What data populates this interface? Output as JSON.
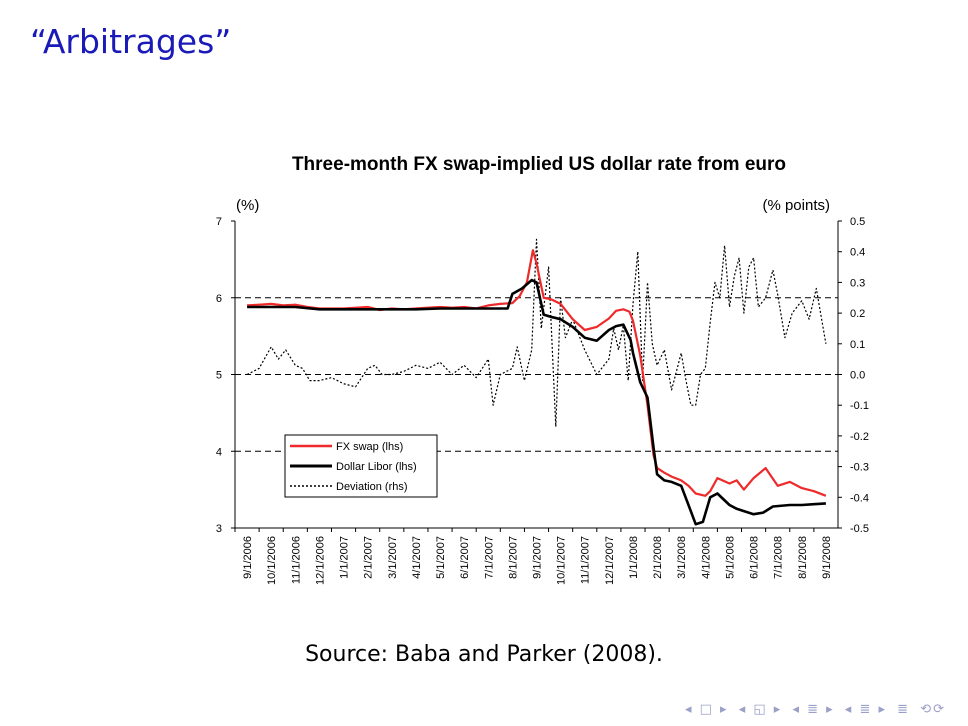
{
  "slide": {
    "title": "“Arbitrages”",
    "source": "Source: Baba and Parker (2008)."
  },
  "nav": {
    "icons": [
      "nav-first-icon",
      "nav-prev-icon",
      "nav-section-icon",
      "nav-next-icon",
      "nav-subsection-icon",
      "nav-last-icon",
      "nav-menu-icon",
      "nav-search-icon"
    ],
    "glyphs": [
      "◂ □ ▸",
      "◂ ◱ ▸",
      "◂ ≣ ▸",
      "◂ ≣ ▸",
      "≣",
      "⟲⟳"
    ]
  },
  "chart_data": {
    "type": "line",
    "title": "Three-month FX swap-implied US dollar rate from euro",
    "ylabel_left": "(%)",
    "ylabel_right": "(% points)",
    "ylim_left": [
      3,
      7
    ],
    "yticks_left": [
      "3",
      "4",
      "5",
      "6",
      "7"
    ],
    "ylim_right": [
      -0.5,
      0.5
    ],
    "yticks_right": [
      "-0.5",
      "-0.4",
      "-0.3",
      "-0.2",
      "-0.1",
      "0.0",
      "0.1",
      "0.2",
      "0.3",
      "0.4",
      "0.5"
    ],
    "categories": [
      "9/1/2006",
      "10/1/2006",
      "11/1/2006",
      "12/1/2006",
      "1/1/2007",
      "2/1/2007",
      "3/1/2007",
      "4/1/2007",
      "5/1/2007",
      "6/1/2007",
      "7/1/2007",
      "8/1/2007",
      "9/1/2007",
      "10/1/2007",
      "11/1/2007",
      "12/1/2007",
      "1/1/2008",
      "2/1/2008",
      "3/1/2008",
      "4/1/2008",
      "5/1/2008",
      "6/1/2008",
      "7/1/2008",
      "8/1/2008",
      "9/1/2008"
    ],
    "legend_position": "lower-left",
    "colors": {
      "fx_swap": "#ee2a2a",
      "libor": "#000000",
      "deviation": "#000000",
      "grid": "#000000"
    },
    "series": [
      {
        "name": "FX swap (lhs)",
        "axis": "left",
        "style": "solid-red",
        "x": [
          0,
          0.5,
          1,
          1.5,
          2,
          2.5,
          3,
          3.5,
          4,
          4.5,
          5,
          5.5,
          6,
          6.5,
          7,
          7.5,
          8,
          8.5,
          9,
          9.5,
          10,
          10.5,
          11,
          11.3,
          11.6,
          11.85,
          12,
          12.3,
          12.6,
          13,
          13.5,
          14,
          14.5,
          15,
          15.3,
          15.6,
          15.85,
          16,
          16.3,
          16.6,
          16.85,
          17,
          17.3,
          17.6,
          18,
          18.3,
          18.6,
          19,
          19.2,
          19.5,
          20,
          20.3,
          20.6,
          21,
          21.5,
          22,
          22.5,
          23,
          23.5,
          24
        ],
        "y": [
          5.9,
          5.91,
          5.92,
          5.9,
          5.91,
          5.88,
          5.86,
          5.86,
          5.86,
          5.87,
          5.88,
          5.84,
          5.86,
          5.85,
          5.86,
          5.87,
          5.88,
          5.87,
          5.88,
          5.86,
          5.9,
          5.92,
          5.93,
          6.02,
          6.2,
          6.62,
          6.45,
          6.0,
          5.98,
          5.92,
          5.72,
          5.58,
          5.62,
          5.73,
          5.83,
          5.85,
          5.82,
          5.7,
          5.25,
          4.6,
          3.95,
          3.78,
          3.72,
          3.67,
          3.62,
          3.55,
          3.45,
          3.42,
          3.48,
          3.65,
          3.58,
          3.62,
          3.5,
          3.65,
          3.78,
          3.55,
          3.6,
          3.52,
          3.48,
          3.42
        ]
      },
      {
        "name": "Dollar Libor (lhs)",
        "axis": "left",
        "style": "solid-black-thick",
        "x": [
          0,
          1,
          2,
          3,
          4,
          5,
          6,
          7,
          8,
          9,
          10,
          10.8,
          11,
          11.4,
          11.8,
          12,
          12.3,
          12.6,
          13,
          13.5,
          14,
          14.5,
          15,
          15.3,
          15.6,
          15.9,
          16,
          16.3,
          16.6,
          16.85,
          17,
          17.3,
          17.6,
          18,
          18.3,
          18.6,
          18.9,
          19.2,
          19.5,
          20,
          20.3,
          20.6,
          21,
          21.4,
          21.8,
          22.5,
          23,
          23.5,
          24
        ],
        "y": [
          5.88,
          5.88,
          5.88,
          5.85,
          5.85,
          5.85,
          5.85,
          5.85,
          5.86,
          5.86,
          5.86,
          5.86,
          6.05,
          6.12,
          6.23,
          6.2,
          5.78,
          5.75,
          5.72,
          5.62,
          5.48,
          5.44,
          5.58,
          5.63,
          5.65,
          5.45,
          5.28,
          4.9,
          4.7,
          4.05,
          3.7,
          3.62,
          3.6,
          3.55,
          3.3,
          3.05,
          3.08,
          3.4,
          3.45,
          3.3,
          3.25,
          3.22,
          3.18,
          3.2,
          3.28,
          3.3,
          3.3,
          3.31,
          3.32
        ]
      },
      {
        "name": "Deviation (rhs)",
        "axis": "right",
        "style": "dotted-black",
        "x": [
          0,
          0.5,
          1,
          1.3,
          1.6,
          2,
          2.3,
          2.6,
          3,
          3.5,
          4,
          4.5,
          5,
          5.3,
          5.6,
          6,
          6.5,
          7,
          7.5,
          8,
          8.5,
          9,
          9.5,
          10,
          10.2,
          10.5,
          11,
          11.2,
          11.5,
          11.8,
          12,
          12.2,
          12.5,
          12.8,
          13,
          13.2,
          13.5,
          14,
          14.5,
          15,
          15.2,
          15.4,
          15.6,
          15.8,
          16,
          16.2,
          16.4,
          16.6,
          16.8,
          17,
          17.3,
          17.6,
          18,
          18.2,
          18.4,
          18.6,
          18.8,
          19,
          19.2,
          19.4,
          19.6,
          19.8,
          20,
          20.2,
          20.4,
          20.6,
          20.8,
          21,
          21.2,
          21.5,
          21.8,
          22,
          22.3,
          22.6,
          23,
          23.3,
          23.6,
          24
        ],
        "y": [
          0.0,
          0.02,
          0.09,
          0.05,
          0.08,
          0.03,
          0.02,
          -0.02,
          -0.02,
          -0.01,
          -0.03,
          -0.04,
          0.02,
          0.03,
          0.0,
          0.0,
          0.01,
          0.03,
          0.02,
          0.04,
          0.0,
          0.03,
          -0.01,
          0.05,
          -0.1,
          0.0,
          0.02,
          0.09,
          -0.02,
          0.08,
          0.44,
          0.15,
          0.35,
          -0.17,
          0.25,
          0.12,
          0.18,
          0.08,
          0.0,
          0.05,
          0.15,
          0.08,
          0.16,
          -0.02,
          0.23,
          0.4,
          -0.02,
          0.3,
          0.1,
          0.03,
          0.08,
          -0.05,
          0.07,
          -0.02,
          -0.1,
          -0.1,
          0.0,
          0.02,
          0.17,
          0.3,
          0.25,
          0.42,
          0.22,
          0.32,
          0.38,
          0.2,
          0.35,
          0.38,
          0.22,
          0.25,
          0.34,
          0.26,
          0.12,
          0.2,
          0.24,
          0.18,
          0.28,
          0.1
        ]
      }
    ]
  }
}
